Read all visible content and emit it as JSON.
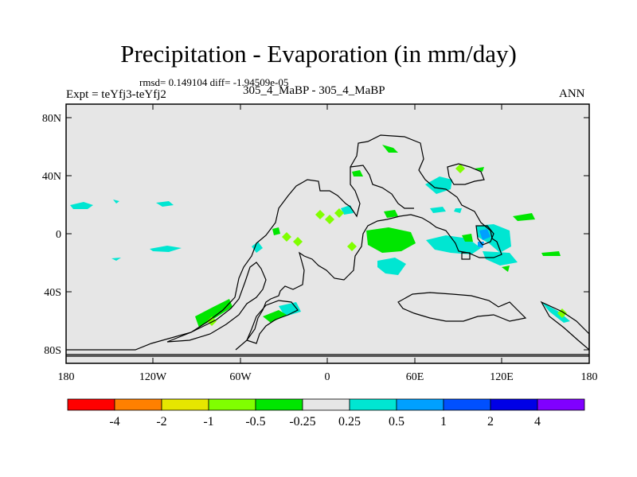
{
  "header": {
    "title": "Precipitation - Evaporation (in mm/day)",
    "subtitle": "rmsd= 0.149104 diff= -1.94509e-05",
    "experiment": "Expt = teYfj3-teYfj2",
    "center_label": "305_4_MaBP - 305_4_MaBP",
    "season": "ANN"
  },
  "map": {
    "lat_labels": [
      "80N",
      "40N",
      "0",
      "40S",
      "80S"
    ],
    "lon_labels": [
      "180",
      "120W",
      "60W",
      "0",
      "60E",
      "120E",
      "180"
    ],
    "background_color": "#e6e6e6"
  },
  "colorbar": {
    "colors": [
      "#ff0000",
      "#ff8000",
      "#e6e600",
      "#80ff00",
      "#00e600",
      "#e6e6e6",
      "#00e6d2",
      "#00a0ff",
      "#0050ff",
      "#0000e6",
      "#8000ff"
    ],
    "labels": [
      "-4",
      "-2",
      "-1",
      "-0.5",
      "-0.25",
      "0.25",
      "0.5",
      "1",
      "2",
      "4"
    ]
  },
  "chart_data": {
    "type": "heatmap",
    "title": "Precipitation - Evaporation (in mm/day)",
    "variable": "P-E difference",
    "units": "mm/day",
    "x_axis": {
      "name": "longitude",
      "ticks": [
        "180",
        "120W",
        "60W",
        "0",
        "60E",
        "120E",
        "180"
      ]
    },
    "y_axis": {
      "name": "latitude",
      "ticks": [
        "80N",
        "40N",
        "0",
        "40S",
        "80S"
      ]
    },
    "levels": [
      -4,
      -2,
      -1,
      -0.5,
      -0.25,
      0.25,
      0.5,
      1,
      2,
      4
    ]
  }
}
